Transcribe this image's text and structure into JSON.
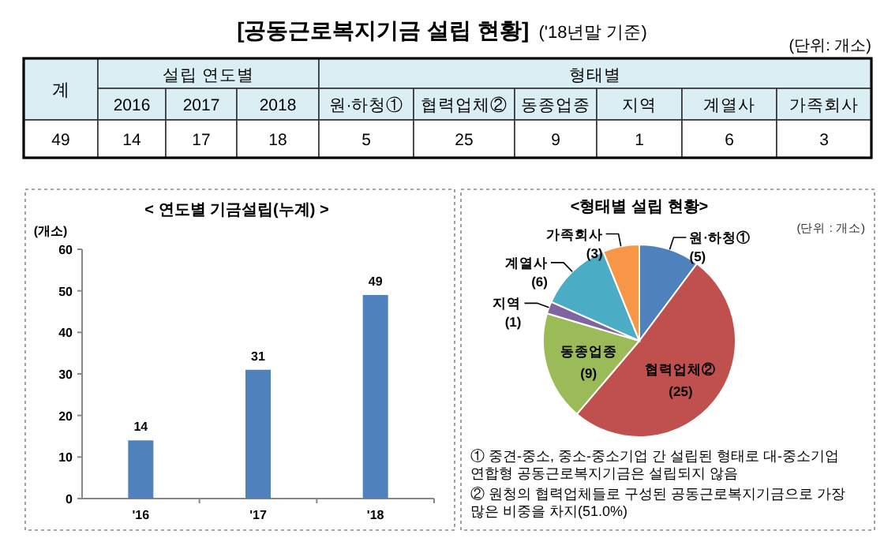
{
  "chart_data": [
    {
      "type": "other",
      "title": "[공동근로복지기금 설립 현황]",
      "subtitle": "('18년말 기준)",
      "categories": [
        "계",
        "2016",
        "2017",
        "2018",
        "원·하청①",
        "협력업체②",
        "동종업종",
        "지역",
        "계열사",
        "가족회사"
      ],
      "values": [
        49,
        14,
        17,
        18,
        5,
        25,
        9,
        1,
        6,
        3
      ],
      "data_labels": true,
      "annotations": [
        "(단위: 개소)",
        "설립 연도별",
        "형태별"
      ]
    },
    {
      "type": "bar",
      "title": "< 연도별 기금설립(누계) >",
      "ylabel": "(개소)",
      "categories": [
        "'16",
        "'17",
        "'18"
      ],
      "values": [
        14,
        31,
        49
      ],
      "color": "#4f81bd",
      "ylim": [
        0,
        60
      ],
      "yticks": [
        0,
        10,
        20,
        30,
        40,
        50,
        60
      ],
      "data_labels": true
    },
    {
      "type": "pie",
      "title": "<형태별 설립 현황>",
      "categories": [
        "원·하청①",
        "협력업체②",
        "동종업종",
        "지역",
        "계열사",
        "가족회사"
      ],
      "values": [
        5,
        25,
        9,
        1,
        6,
        3
      ],
      "colors": [
        "#4f81bd",
        "#c0504d",
        "#9bbb59",
        "#8064a2",
        "#4bacc6",
        "#f79646"
      ],
      "value_labels": [
        "(5)",
        "(25)",
        "(9)",
        "(1)",
        "(6)",
        "(3)"
      ],
      "annotations": [
        "(단위 : 개소)",
        "① 중견-중소, 중소-중소기업 간 설립된 형태로 대-중소기업 연합형 공동근로복지기금은 설립되지 않음",
        "② 원청의 협력업체들로 구성된 공동근로복지기금으로 가장 많은 비중을 차지(51.0%)"
      ]
    }
  ]
}
